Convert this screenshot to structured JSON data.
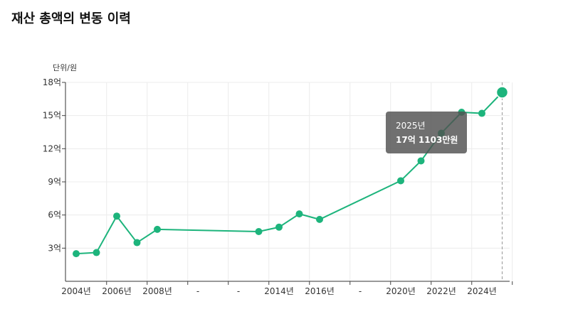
{
  "header": {
    "title": "재산 총액의 변동 이력"
  },
  "chart_data": {
    "type": "line",
    "unit_label": "단위/원",
    "y_ticks": [
      {
        "value": 3,
        "label": "3억"
      },
      {
        "value": 6,
        "label": "6억"
      },
      {
        "value": 9,
        "label": "9억"
      },
      {
        "value": 12,
        "label": "12억"
      },
      {
        "value": 15,
        "label": "15억"
      },
      {
        "value": 18,
        "label": "18억"
      }
    ],
    "ylim": [
      0,
      18
    ],
    "x_slots": [
      "2004년",
      "",
      "2006년",
      "",
      "2008년",
      "",
      "-",
      "",
      "-",
      "",
      "2014년",
      "",
      "2016년",
      "",
      "-",
      "",
      "2020년",
      "",
      "2022년",
      "",
      "2024년",
      ""
    ],
    "points": [
      {
        "year": 2004,
        "slot": 0,
        "value": 2.5
      },
      {
        "year": 2005,
        "slot": 1,
        "value": 2.6
      },
      {
        "year": 2006,
        "slot": 2,
        "value": 5.9
      },
      {
        "year": 2007,
        "slot": 3,
        "value": 3.5
      },
      {
        "year": 2008,
        "slot": 4,
        "value": 4.7
      },
      {
        "year": 2013,
        "slot": 9,
        "value": 4.5
      },
      {
        "year": 2014,
        "slot": 10,
        "value": 4.9
      },
      {
        "year": 2015,
        "slot": 11,
        "value": 6.1
      },
      {
        "year": 2016,
        "slot": 12,
        "value": 5.6
      },
      {
        "year": 2020,
        "slot": 16,
        "value": 9.1
      },
      {
        "year": 2021,
        "slot": 17,
        "value": 10.9
      },
      {
        "year": 2022,
        "slot": 18,
        "value": 13.4
      },
      {
        "year": 2023,
        "slot": 19,
        "value": 15.3
      },
      {
        "year": 2024,
        "slot": 20,
        "value": 15.2
      },
      {
        "year": 2025,
        "slot": 21,
        "value": 17.1
      }
    ],
    "line_color": "#1db47c",
    "grid": true,
    "highlight_index": 14,
    "tooltip": {
      "year": "2025년",
      "value": "17억 1103만원"
    }
  }
}
